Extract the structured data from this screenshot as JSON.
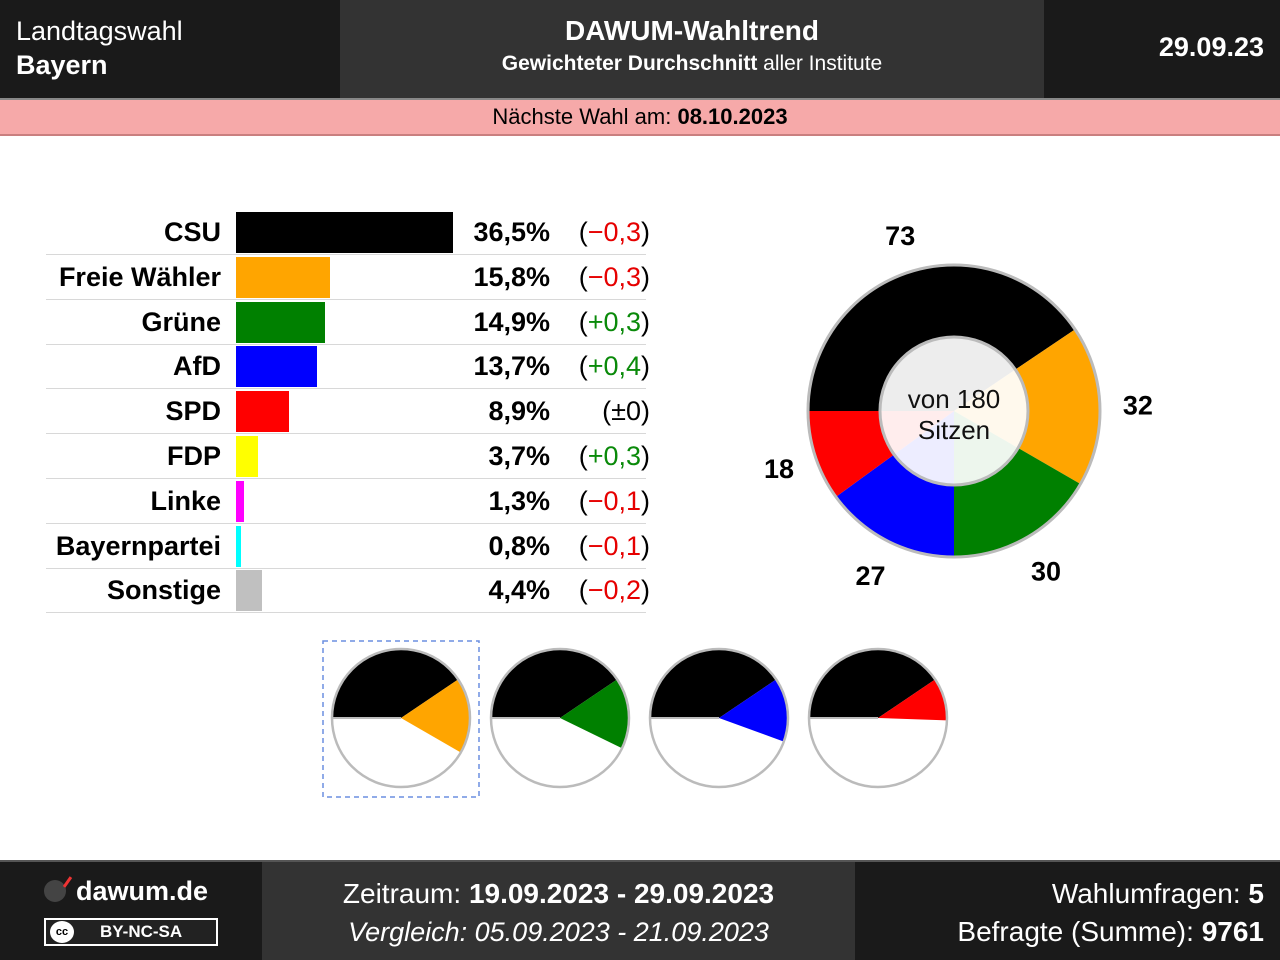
{
  "header": {
    "left_line1": "Landtagswahl",
    "left_line2": "Bayern",
    "title": "DAWUM-Wahltrend",
    "subtitle_bold": "Gewichteter Durchschnitt",
    "subtitle_rest": " aller Institute",
    "date": "29.09.23"
  },
  "next_election": {
    "label": "Nächste Wahl am: ",
    "date": "08.10.2023"
  },
  "chart_data": [
    {
      "type": "bar",
      "categories": [
        "CSU",
        "Freie Wähler",
        "Grüne",
        "AfD",
        "SPD",
        "FDP",
        "Linke",
        "Bayernpartei",
        "Sonstige"
      ],
      "values": [
        36.5,
        15.8,
        14.9,
        13.7,
        8.9,
        3.7,
        1.3,
        0.8,
        4.4
      ],
      "value_labels": [
        "36,5%",
        "15,8%",
        "14,9%",
        "13,7%",
        "8,9%",
        "3,7%",
        "1,3%",
        "0,8%",
        "4,4%"
      ],
      "changes": [
        -0.3,
        -0.3,
        0.3,
        0.4,
        0,
        0.3,
        -0.1,
        -0.1,
        -0.2
      ],
      "change_labels": [
        "−0,3",
        "−0,3",
        "+0,3",
        "+0,4",
        "±0",
        "+0,3",
        "−0,1",
        "−0,1",
        "−0,2"
      ],
      "colors": [
        "#000000",
        "#ffa500",
        "#008000",
        "#0000ff",
        "#ff0000",
        "#ffff00",
        "#ff00ff",
        "#00ffff",
        "#c0c0c0"
      ]
    },
    {
      "type": "pie",
      "title": "",
      "center_label_line1": "von 180",
      "center_label_line2": "Sitzen",
      "categories": [
        "CSU",
        "Freie Wähler",
        "Grüne",
        "AfD",
        "SPD"
      ],
      "values": [
        73,
        32,
        30,
        27,
        18
      ],
      "colors": [
        "#000000",
        "#ffa500",
        "#008000",
        "#0000ff",
        "#ff0000"
      ],
      "total": 180
    },
    {
      "type": "pie",
      "title": "",
      "subtype": "coalition-semicircles",
      "coalitions": [
        {
          "parties": [
            "CSU",
            "Freie Wähler"
          ],
          "seats": [
            73,
            32
          ],
          "colors": [
            "#000000",
            "#ffa500"
          ],
          "selected": true
        },
        {
          "parties": [
            "CSU",
            "Grüne"
          ],
          "seats": [
            73,
            30
          ],
          "colors": [
            "#000000",
            "#008000"
          ],
          "selected": false
        },
        {
          "parties": [
            "CSU",
            "AfD"
          ],
          "seats": [
            73,
            27
          ],
          "colors": [
            "#000000",
            "#0000ff"
          ],
          "selected": false
        },
        {
          "parties": [
            "CSU",
            "SPD"
          ],
          "seats": [
            73,
            18
          ],
          "colors": [
            "#000000",
            "#ff0000"
          ],
          "selected": false
        }
      ],
      "total": 180
    }
  ],
  "footer": {
    "site": "dawum.de",
    "license": "BY-NC-SA",
    "license_icon": "cc",
    "period_label": "Zeitraum: ",
    "period_value": "19.09.2023 - 29.09.2023",
    "compare_text": "Vergleich: 05.09.2023 - 21.09.2023",
    "polls_label": "Wahlumfragen: ",
    "polls_value": "5",
    "respondents_label": "Befragte (Summe): ",
    "respondents_value": "9761"
  }
}
